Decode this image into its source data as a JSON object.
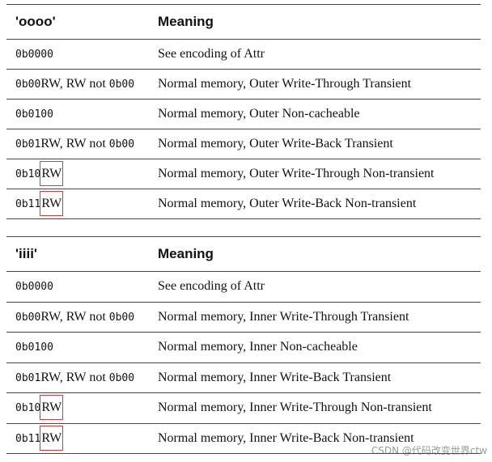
{
  "tables": [
    {
      "header": [
        "'oooo'",
        "Meaning"
      ],
      "rows": [
        {
          "encoding": [
            "0b0000"
          ],
          "meaning": "See encoding of Attr"
        },
        {
          "encoding": [
            "0b00",
            "RW, RW not ",
            "0b00"
          ],
          "meaning": "Normal memory, Outer Write-Through Transient"
        },
        {
          "encoding": [
            "0b0100"
          ],
          "meaning": "Normal memory, Outer Non-cacheable"
        },
        {
          "encoding": [
            "0b01",
            "RW, RW not ",
            "0b00"
          ],
          "meaning": "Normal memory, Outer Write-Back Transient"
        },
        {
          "encoding": [
            "0b10",
            "RW"
          ],
          "meaning": "Normal memory, Outer Write-Through Non-transient",
          "highlight": true
        },
        {
          "encoding": [
            "0b11",
            "RW"
          ],
          "meaning": "Normal memory, Outer Write-Back Non-transient",
          "highlight": true
        }
      ]
    },
    {
      "header": [
        "'iiii'",
        "Meaning"
      ],
      "rows": [
        {
          "encoding": [
            "0b0000"
          ],
          "meaning": "See encoding of Attr"
        },
        {
          "encoding": [
            "0b00",
            "RW, RW not ",
            "0b00"
          ],
          "meaning": "Normal memory, Inner Write-Through Transient"
        },
        {
          "encoding": [
            "0b0100"
          ],
          "meaning": "Normal memory, Inner Non-cacheable"
        },
        {
          "encoding": [
            "0b01",
            "RW, RW not ",
            "0b00"
          ],
          "meaning": "Normal memory, Inner Write-Back Transient"
        },
        {
          "encoding": [
            "0b10",
            "RW"
          ],
          "meaning": "Normal memory, Inner Write-Through Non-transient",
          "highlight": true
        },
        {
          "encoding": [
            "0b11",
            "RW"
          ],
          "meaning": "Normal memory, Inner Write-Back Non-transient",
          "highlight": true
        }
      ]
    }
  ],
  "watermark": "CSDN @代码改变世界ctw"
}
